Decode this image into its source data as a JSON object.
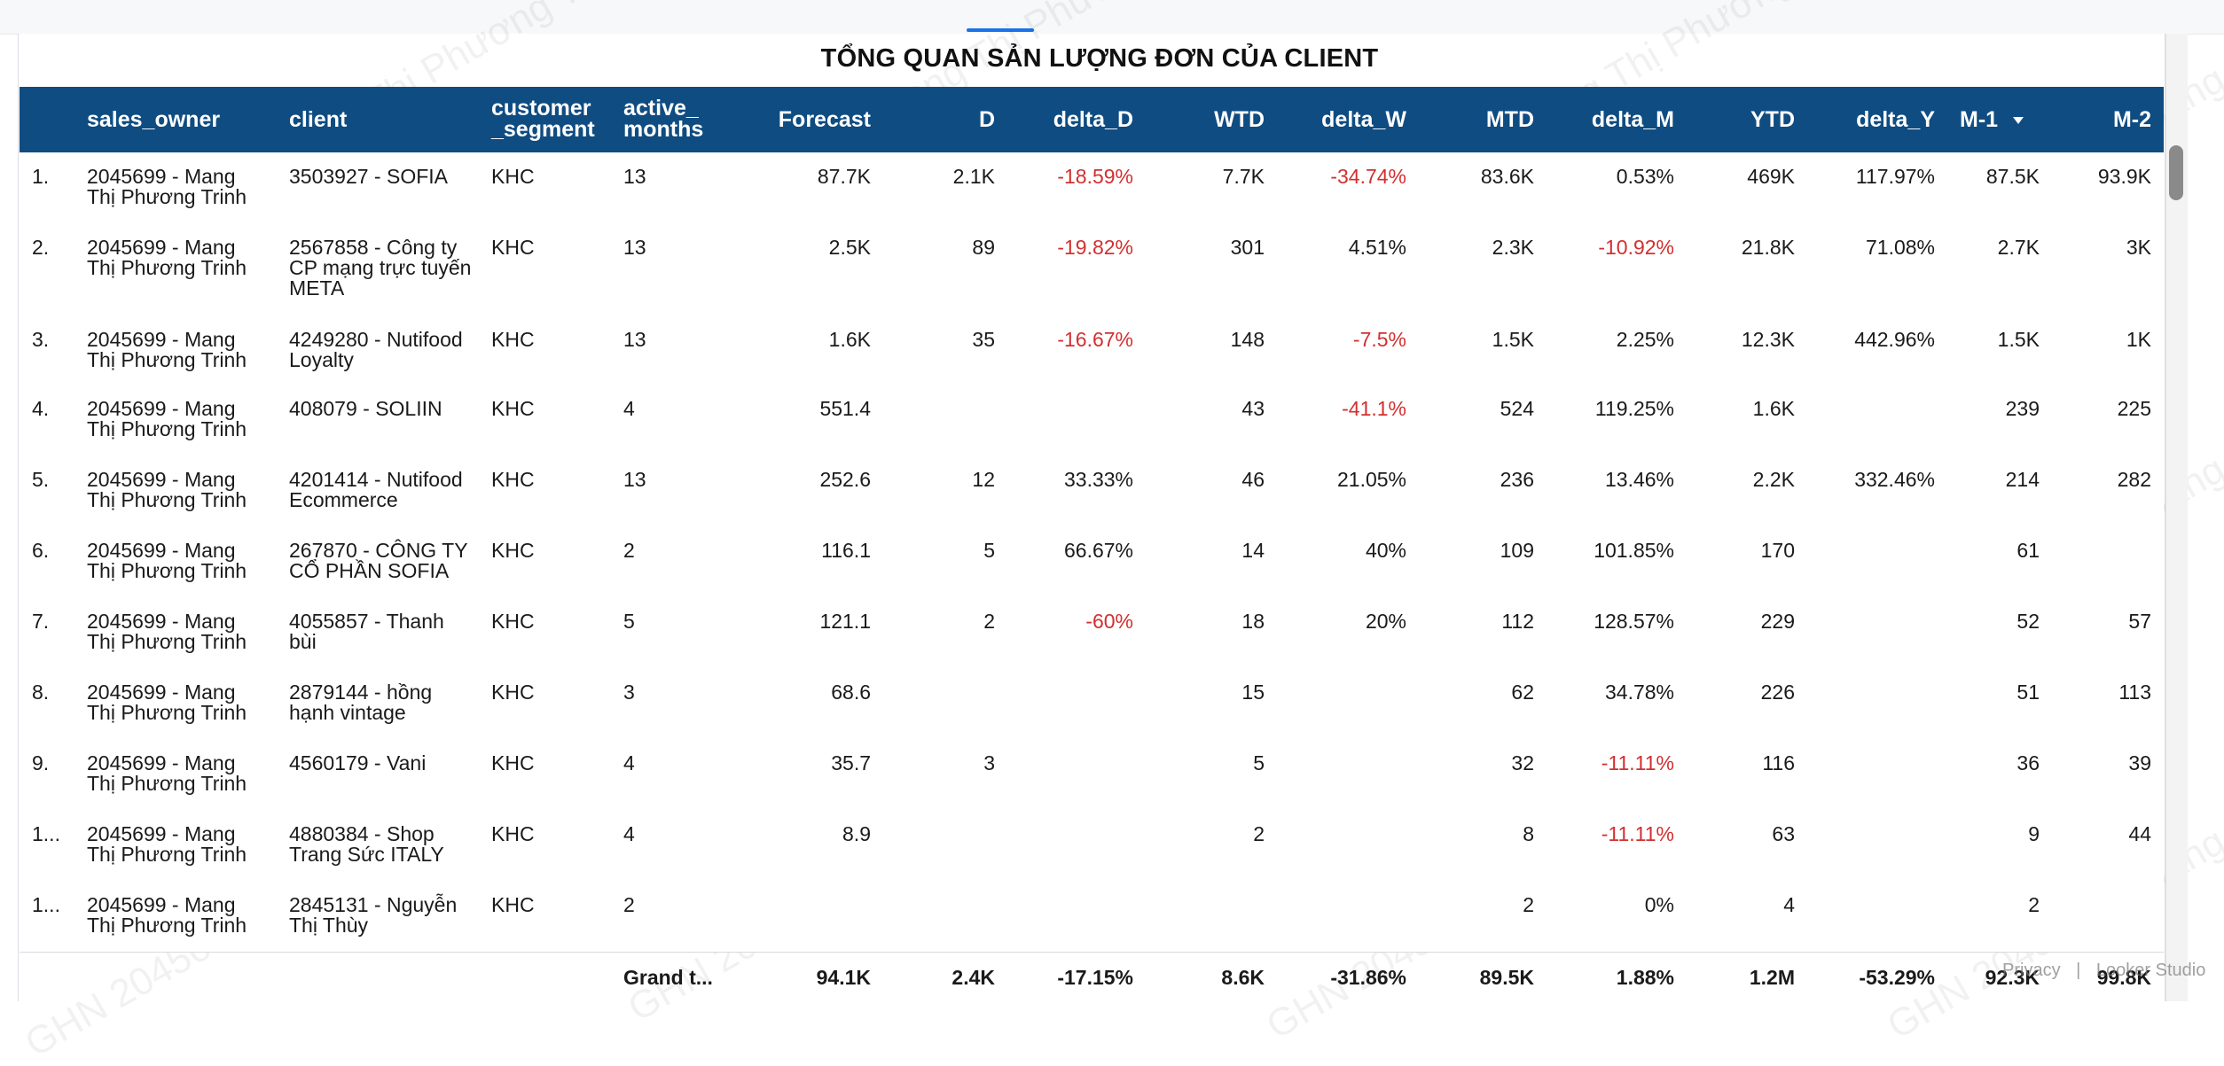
{
  "report": {
    "title": "TỔNG QUAN SẢN LƯỢNG ĐƠN CỦA CLIENT",
    "watermark": "GHN 2045699 - Mang Thị Phương Trinh"
  },
  "table": {
    "columns": {
      "sales_owner": "sales_owner",
      "client": "client",
      "customer_segment": "customer _segment",
      "active_months": "active_ months",
      "forecast": "Forecast",
      "d": "D",
      "delta_d": "delta_D",
      "wtd": "WTD",
      "delta_w": "delta_W",
      "mtd": "MTD",
      "delta_m": "delta_M",
      "ytd": "YTD",
      "delta_y": "delta_Y",
      "m1": "M-1",
      "m2": "M-2"
    },
    "sort": {
      "column": "M-1",
      "direction": "descending",
      "icon": "sort-desc-icon"
    },
    "rows": [
      {
        "idx": "1.",
        "sales_owner": "2045699 - Mang Thị Phương Trinh",
        "client": "3503927 - SOFIA",
        "segment": "KHC",
        "active_months": "13",
        "forecast": "87.7K",
        "d": "2.1K",
        "delta_d": "-18.59%",
        "wtd": "7.7K",
        "delta_w": "-34.74%",
        "mtd": "83.6K",
        "delta_m": "0.53%",
        "ytd": "469K",
        "delta_y": "117.97%",
        "m1": "87.5K",
        "m2": "93.9K"
      },
      {
        "idx": "2.",
        "sales_owner": "2045699 - Mang Thị Phương Trinh",
        "client": "2567858 - Công ty CP mạng trực tuyến META",
        "segment": "KHC",
        "active_months": "13",
        "forecast": "2.5K",
        "d": "89",
        "delta_d": "-19.82%",
        "wtd": "301",
        "delta_w": "4.51%",
        "mtd": "2.3K",
        "delta_m": "-10.92%",
        "ytd": "21.8K",
        "delta_y": "71.08%",
        "m1": "2.7K",
        "m2": "3K"
      },
      {
        "idx": "3.",
        "sales_owner": "2045699 - Mang Thị Phương Trinh",
        "client": "4249280 - Nutifood Loyalty",
        "segment": "KHC",
        "active_months": "13",
        "forecast": "1.6K",
        "d": "35",
        "delta_d": "-16.67%",
        "wtd": "148",
        "delta_w": "-7.5%",
        "mtd": "1.5K",
        "delta_m": "2.25%",
        "ytd": "12.3K",
        "delta_y": "442.96%",
        "m1": "1.5K",
        "m2": "1K"
      },
      {
        "idx": "4.",
        "sales_owner": "2045699 - Mang Thị Phương Trinh",
        "client": "408079 - SOLIIN",
        "segment": "KHC",
        "active_months": "4",
        "forecast": "551.4",
        "d": "",
        "delta_d": "",
        "wtd": "43",
        "delta_w": "-41.1%",
        "mtd": "524",
        "delta_m": "119.25%",
        "ytd": "1.6K",
        "delta_y": "",
        "m1": "239",
        "m2": "225"
      },
      {
        "idx": "5.",
        "sales_owner": "2045699 - Mang Thị Phương Trinh",
        "client": "4201414 - Nutifood Ecommerce",
        "segment": "KHC",
        "active_months": "13",
        "forecast": "252.6",
        "d": "12",
        "delta_d": "33.33%",
        "wtd": "46",
        "delta_w": "21.05%",
        "mtd": "236",
        "delta_m": "13.46%",
        "ytd": "2.2K",
        "delta_y": "332.46%",
        "m1": "214",
        "m2": "282"
      },
      {
        "idx": "6.",
        "sales_owner": "2045699 - Mang Thị Phương Trinh",
        "client": "267870 - CÔNG TY CỔ PHẦN SOFIA",
        "segment": "KHC",
        "active_months": "2",
        "forecast": "116.1",
        "d": "5",
        "delta_d": "66.67%",
        "wtd": "14",
        "delta_w": "40%",
        "mtd": "109",
        "delta_m": "101.85%",
        "ytd": "170",
        "delta_y": "",
        "m1": "61",
        "m2": ""
      },
      {
        "idx": "7.",
        "sales_owner": "2045699 - Mang Thị Phương Trinh",
        "client": "4055857 - Thanh bùi",
        "segment": "KHC",
        "active_months": "5",
        "forecast": "121.1",
        "d": "2",
        "delta_d": "-60%",
        "wtd": "18",
        "delta_w": "20%",
        "mtd": "112",
        "delta_m": "128.57%",
        "ytd": "229",
        "delta_y": "",
        "m1": "52",
        "m2": "57"
      },
      {
        "idx": "8.",
        "sales_owner": "2045699 - Mang Thị Phương Trinh",
        "client": "2879144 - hồng hạnh vintage",
        "segment": "KHC",
        "active_months": "3",
        "forecast": "68.6",
        "d": "",
        "delta_d": "",
        "wtd": "15",
        "delta_w": "",
        "mtd": "62",
        "delta_m": "34.78%",
        "ytd": "226",
        "delta_y": "",
        "m1": "51",
        "m2": "113"
      },
      {
        "idx": "9.",
        "sales_owner": "2045699 - Mang Thị Phương Trinh",
        "client": "4560179 - Vani",
        "segment": "KHC",
        "active_months": "4",
        "forecast": "35.7",
        "d": "3",
        "delta_d": "",
        "wtd": "5",
        "delta_w": "",
        "mtd": "32",
        "delta_m": "-11.11%",
        "ytd": "116",
        "delta_y": "",
        "m1": "36",
        "m2": "39"
      },
      {
        "idx": "1...",
        "sales_owner": "2045699 - Mang Thị Phương Trinh",
        "client": "4880384 - Shop Trang Sức ITALY",
        "segment": "KHC",
        "active_months": "4",
        "forecast": "8.9",
        "d": "",
        "delta_d": "",
        "wtd": "2",
        "delta_w": "",
        "mtd": "8",
        "delta_m": "-11.11%",
        "ytd": "63",
        "delta_y": "",
        "m1": "9",
        "m2": "44"
      },
      {
        "idx": "1...",
        "sales_owner": "2045699 - Mang Thị Phương Trinh",
        "client": "2845131 - Nguyễn Thị Thùy",
        "segment": "KHC",
        "active_months": "2",
        "forecast": "",
        "d": "",
        "delta_d": "",
        "wtd": "",
        "delta_w": "",
        "mtd": "2",
        "delta_m": "0%",
        "ytd": "4",
        "delta_y": "",
        "m1": "2",
        "m2": ""
      }
    ],
    "grand_total": {
      "label": "Grand t...",
      "forecast": "94.1K",
      "d": "2.4K",
      "delta_d": "-17.15%",
      "wtd": "8.6K",
      "delta_w": "-31.86%",
      "mtd": "89.5K",
      "delta_m": "1.88%",
      "ytd": "1.2M",
      "delta_y": "-53.29%",
      "m1": "92.3K",
      "m2": "99.8K"
    }
  },
  "footer": {
    "privacy": "Privacy",
    "separator": "|",
    "product": "Looker Studio"
  },
  "colors": {
    "header_bg": "#0f4c81",
    "negative": "#d32f2f",
    "accent": "#1a73e8"
  }
}
